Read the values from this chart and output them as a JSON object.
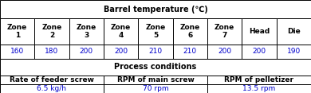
{
  "title_row": "Barrel temperature (℃)",
  "header_row": [
    "Zone\n1",
    "Zone\n2",
    "Zone\n3",
    "Zone\n4",
    "Zone\n5",
    "Zone\n6",
    "Zone\n7",
    "Head",
    "Die"
  ],
  "data_row": [
    "160",
    "180",
    "200",
    "200",
    "210",
    "210",
    "200",
    "200",
    "190"
  ],
  "process_title": "Process conditions",
  "process_headers": [
    "Rate of feeder screw",
    "RPM of main screw",
    "RPM of pelletizer"
  ],
  "process_values": [
    "6.5 kg/h",
    "70 rpm",
    "13.5 rpm"
  ],
  "bg_color": "#ffffff",
  "border_color": "#000000",
  "data_text_color": "#0000cc",
  "header_text_color": "#000000",
  "title_text_color": "#000000",
  "proc_header_color": "#000000",
  "proc_value_color": "#0000cc",
  "font_size": 6.5,
  "title_font_size": 7.0,
  "row_tops": [
    1.0,
    0.8,
    0.52,
    0.37,
    0.19,
    0.0
  ],
  "group_col_ends": [
    3,
    6,
    9
  ],
  "n_cols": 9
}
